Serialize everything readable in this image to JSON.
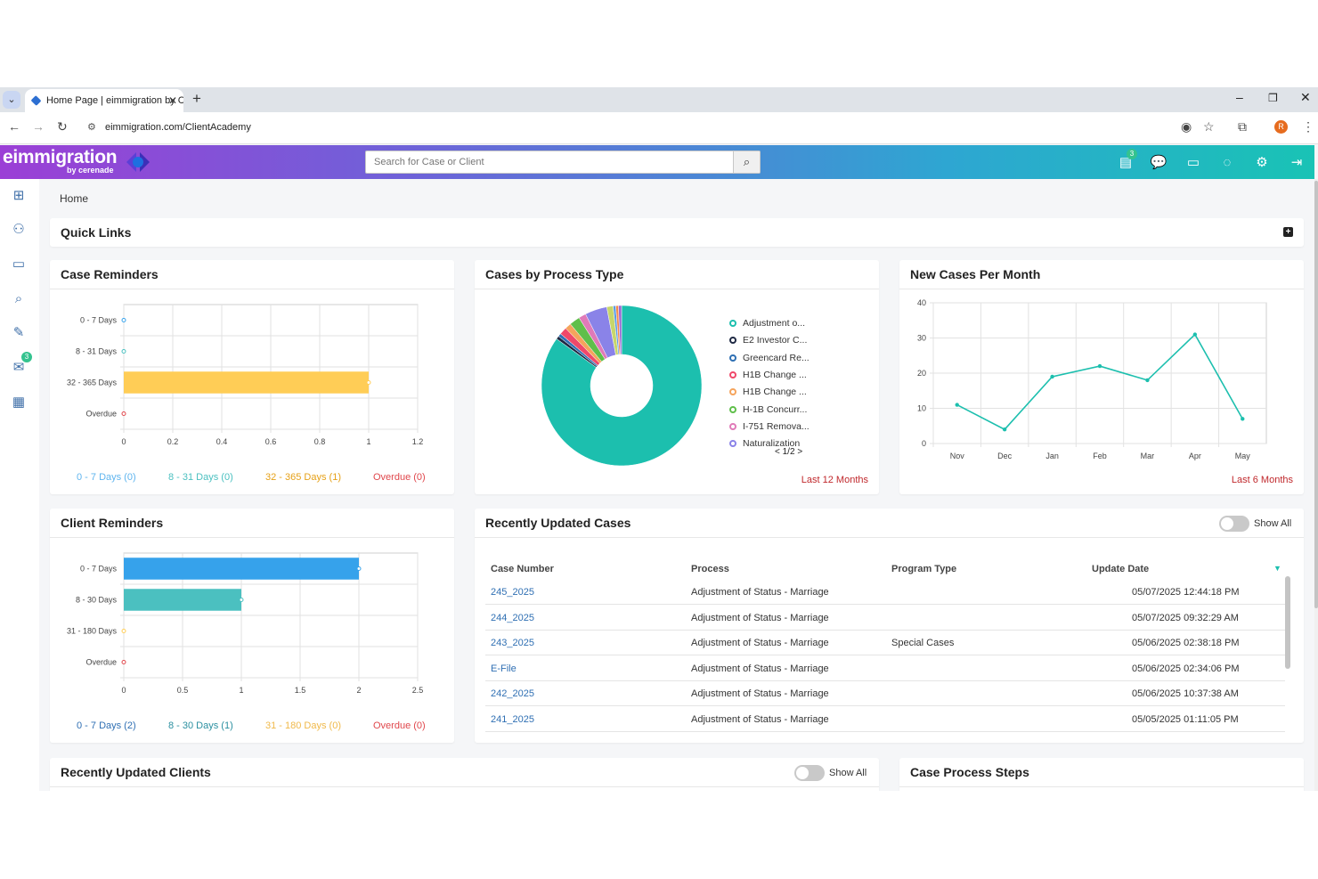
{
  "browser": {
    "tab_title": "Home Page | eimmigration by C",
    "url": "eimmigration.com/ClientAcademy",
    "profile_initial": "R"
  },
  "header": {
    "logo_text": "eimmigration",
    "logo_sub": "by cerenade",
    "search_placeholder": "Search for Case or Client",
    "notif_badge": "3"
  },
  "sidebar": {
    "mail_badge": "3"
  },
  "breadcrumb": "Home",
  "quick_links": {
    "title": "Quick Links"
  },
  "case_reminders": {
    "title": "Case Reminders",
    "legend": [
      "0 - 7 Days (0)",
      "8 - 31 Days (0)",
      "32 - 365 Days (1)",
      "Overdue (0)"
    ]
  },
  "cases_by_process": {
    "title": "Cases by Process Type",
    "legend": [
      "Adjustment o...",
      "E2 Investor C...",
      "Greencard Re...",
      "H1B Change ...",
      "H1B Change ...",
      "H-1B Concurr...",
      "I-751 Remova...",
      "Naturalization"
    ],
    "pager": "1/2",
    "range": "Last 12 Months"
  },
  "new_cases": {
    "title": "New Cases Per Month",
    "range": "Last 6 Months"
  },
  "client_reminders": {
    "title": "Client Reminders",
    "legend": [
      "0 - 7 Days (2)",
      "8 - 30 Days (1)",
      "31 - 180 Days (0)",
      "Overdue (0)"
    ]
  },
  "recent_cases": {
    "title": "Recently Updated Cases",
    "show_all": "Show All",
    "columns": [
      "Case Number",
      "Process",
      "Program Type",
      "Update Date"
    ],
    "rows": [
      {
        "case": "245_2025",
        "process": "Adjustment of Status - Marriage",
        "program": "",
        "date": "05/07/2025 12:44:18 PM"
      },
      {
        "case": "244_2025",
        "process": "Adjustment of Status - Marriage",
        "program": "",
        "date": "05/07/2025 09:32:29 AM"
      },
      {
        "case": "243_2025",
        "process": "Adjustment of Status - Marriage",
        "program": "Special Cases",
        "date": "05/06/2025 02:38:18 PM"
      },
      {
        "case": "E-File",
        "process": "Adjustment of Status - Marriage",
        "program": "",
        "date": "05/06/2025 02:34:06 PM"
      },
      {
        "case": "242_2025",
        "process": "Adjustment of Status - Marriage",
        "program": "",
        "date": "05/06/2025 10:37:38 AM"
      },
      {
        "case": "241_2025",
        "process": "Adjustment of Status - Marriage",
        "program": "",
        "date": "05/05/2025 01:11:05 PM"
      }
    ]
  },
  "recent_clients": {
    "title": "Recently Updated Clients",
    "show_all": "Show All"
  },
  "case_steps": {
    "title": "Case Process Steps"
  },
  "colors": {
    "teal": "#1cbfae",
    "yellow": "#ffcd56",
    "blue": "#36a2eb",
    "turquoise": "#4bc0c0",
    "red": "#e0474c"
  },
  "chart_data": [
    {
      "type": "bar",
      "orientation": "horizontal",
      "categories": [
        "0 - 7 Days",
        "8 - 31 Days",
        "32 - 365 Days",
        "Overdue"
      ],
      "values": [
        0,
        0,
        1,
        0
      ],
      "xlim": [
        0,
        1.2
      ],
      "xticks": [
        "0",
        "0.2",
        "0.4",
        "0.6",
        "0.8",
        "1",
        "1.2"
      ],
      "colors": [
        "#36a2eb",
        "#4bc0c0",
        "#ffcd56",
        "#e0474c"
      ]
    },
    {
      "type": "pie",
      "labels": [
        "Adjustment o...",
        "E2 Investor C...",
        "Greencard Re...",
        "H1B Change ...",
        "H1B Change ...",
        "H-1B Concurr...",
        "I-751 Remova...",
        "Naturalization",
        "",
        "",
        "",
        ""
      ],
      "values": [
        80,
        0.6,
        0.6,
        1.4,
        1.2,
        2,
        1.4,
        4.2,
        1.2,
        0.5,
        0.5,
        0.6
      ],
      "colors": [
        "#1cbfae",
        "#1f2a44",
        "#2e6fb3",
        "#f0486a",
        "#f5a45c",
        "#5fbf4a",
        "#e07ab8",
        "#8a83e8",
        "#c7d66a",
        "#5a9be6",
        "#f58a4a",
        "#9a6ad6"
      ]
    },
    {
      "type": "line",
      "x": [
        "Nov",
        "Dec",
        "Jan",
        "Feb",
        "Mar",
        "Apr",
        "May"
      ],
      "values": [
        11,
        4,
        19,
        22,
        18,
        31,
        7
      ],
      "ylim": [
        0,
        40
      ],
      "yticks": [
        "0",
        "10",
        "20",
        "30",
        "40"
      ],
      "color": "#1cbfae"
    },
    {
      "type": "bar",
      "orientation": "horizontal",
      "categories": [
        "0 - 7 Days",
        "8 - 30 Days",
        "31 - 180 Days",
        "Overdue"
      ],
      "values": [
        2,
        1,
        0,
        0
      ],
      "xlim": [
        0,
        2.5
      ],
      "xticks": [
        "0",
        "0.5",
        "1",
        "1.5",
        "2",
        "2.5"
      ],
      "colors": [
        "#36a2eb",
        "#4bc0c0",
        "#ffcd56",
        "#e0474c"
      ]
    }
  ]
}
